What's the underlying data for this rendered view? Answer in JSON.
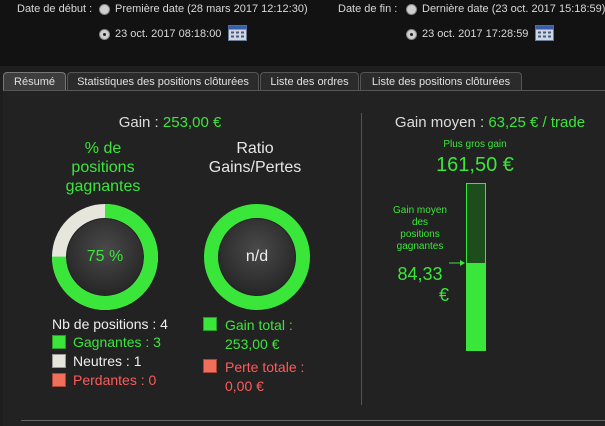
{
  "filters": {
    "start_label": "Date de début :",
    "start_first_option": "Première date (28 mars 2017 12:12:30)",
    "start_custom_date": "23 oct. 2017 08:18:00",
    "end_label": "Date de fin :",
    "end_last_option": "Dernière date (23 oct. 2017 15:18:59)",
    "end_custom_date": "23 oct. 2017 17:28:59"
  },
  "tabs": [
    {
      "label": "Résumé",
      "active": true
    },
    {
      "label": "Statistiques des positions clôturées",
      "active": false
    },
    {
      "label": "Liste des ordres",
      "active": false
    },
    {
      "label": "Liste des positions clôturées",
      "active": false
    }
  ],
  "summary": {
    "gain_label": "Gain :",
    "gain_value": "253,00 €",
    "pct_title_line1": "% de",
    "pct_title_line2": "positions",
    "pct_title_line3": "gagnantes",
    "pct_value": "75 %",
    "pct_fraction": 0.75,
    "ratio_title_line1": "Ratio",
    "ratio_title_line2": "Gains/Pertes",
    "ratio_value": "n/d",
    "nb_positions": "Nb de positions : 4",
    "winners": "Gagnantes : 3",
    "neutral": "Neutres : 1",
    "losers": "Perdantes : 0",
    "total_gain_line1": "Gain total :",
    "total_gain_line2": "253,00 €",
    "total_loss_line1": "Perte totale :",
    "total_loss_line2": "0,00 €"
  },
  "average": {
    "label": "Gain moyen :",
    "value": "63,25 € / trade",
    "biggest_label": "Plus gros gain",
    "biggest_value": "161,50 €",
    "avg_win_line1": "Gain moyen",
    "avg_win_line2": "des",
    "avg_win_line3": "positions",
    "avg_win_line4": "gagnantes",
    "avg_win_value_line1": "84,33",
    "avg_win_value_line2": "€",
    "bar_fraction": 0.522
  },
  "colors": {
    "accent_green": "#3be63b",
    "loss_red": "#ff5b5b",
    "neutral": "#e6e6dc"
  }
}
